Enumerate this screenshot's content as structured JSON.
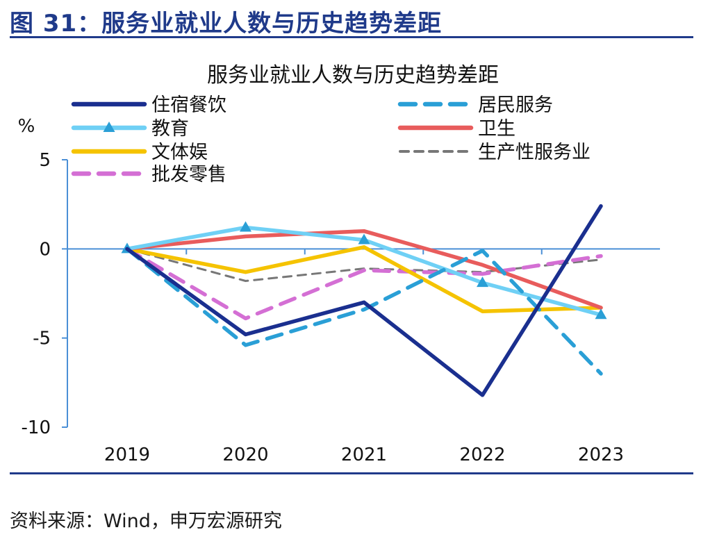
{
  "figure": {
    "label": "图 31：服务业就业人数与历史趋势差距",
    "source": "资料来源：Wind，申万宏源研究"
  },
  "chart_data": {
    "type": "line",
    "title": "服务业就业人数与历史趋势差距",
    "ylabel": "%",
    "xlabel": "",
    "categories": [
      "2019",
      "2020",
      "2021",
      "2022",
      "2023"
    ],
    "ylim": [
      -10,
      5
    ],
    "yticks": [
      5,
      0,
      -5,
      -10
    ],
    "grid": false,
    "legend_position": "top",
    "series": [
      {
        "name": "住宿餐饮",
        "values": [
          0,
          -4.8,
          -3.0,
          -8.2,
          2.4
        ],
        "color": "#1a2f8f",
        "dash": "solid",
        "marker": "none"
      },
      {
        "name": "居民服务",
        "values": [
          0,
          -5.4,
          -3.4,
          -0.1,
          -7.0
        ],
        "color": "#2a9fd6",
        "dash": "dashed",
        "marker": "none"
      },
      {
        "name": "教育",
        "values": [
          0,
          1.2,
          0.5,
          -1.9,
          -3.7
        ],
        "color": "#6fd0f5",
        "dash": "solid",
        "marker": "triangle"
      },
      {
        "name": "卫生",
        "values": [
          0,
          0.7,
          1.0,
          -0.9,
          -3.3
        ],
        "color": "#e85c5c",
        "dash": "solid",
        "marker": "none"
      },
      {
        "name": "文体娱",
        "values": [
          0,
          -1.3,
          0.1,
          -3.5,
          -3.3
        ],
        "color": "#f5c300",
        "dash": "solid",
        "marker": "none"
      },
      {
        "name": "生产性服务业",
        "values": [
          0,
          -1.8,
          -1.1,
          -1.3,
          -0.6
        ],
        "color": "#777777",
        "dash": "thin-dashed",
        "marker": "none"
      },
      {
        "name": "批发零售",
        "values": [
          0,
          -3.9,
          -1.2,
          -1.4,
          -0.4
        ],
        "color": "#d46fd4",
        "dash": "dashed",
        "marker": "none"
      }
    ]
  }
}
